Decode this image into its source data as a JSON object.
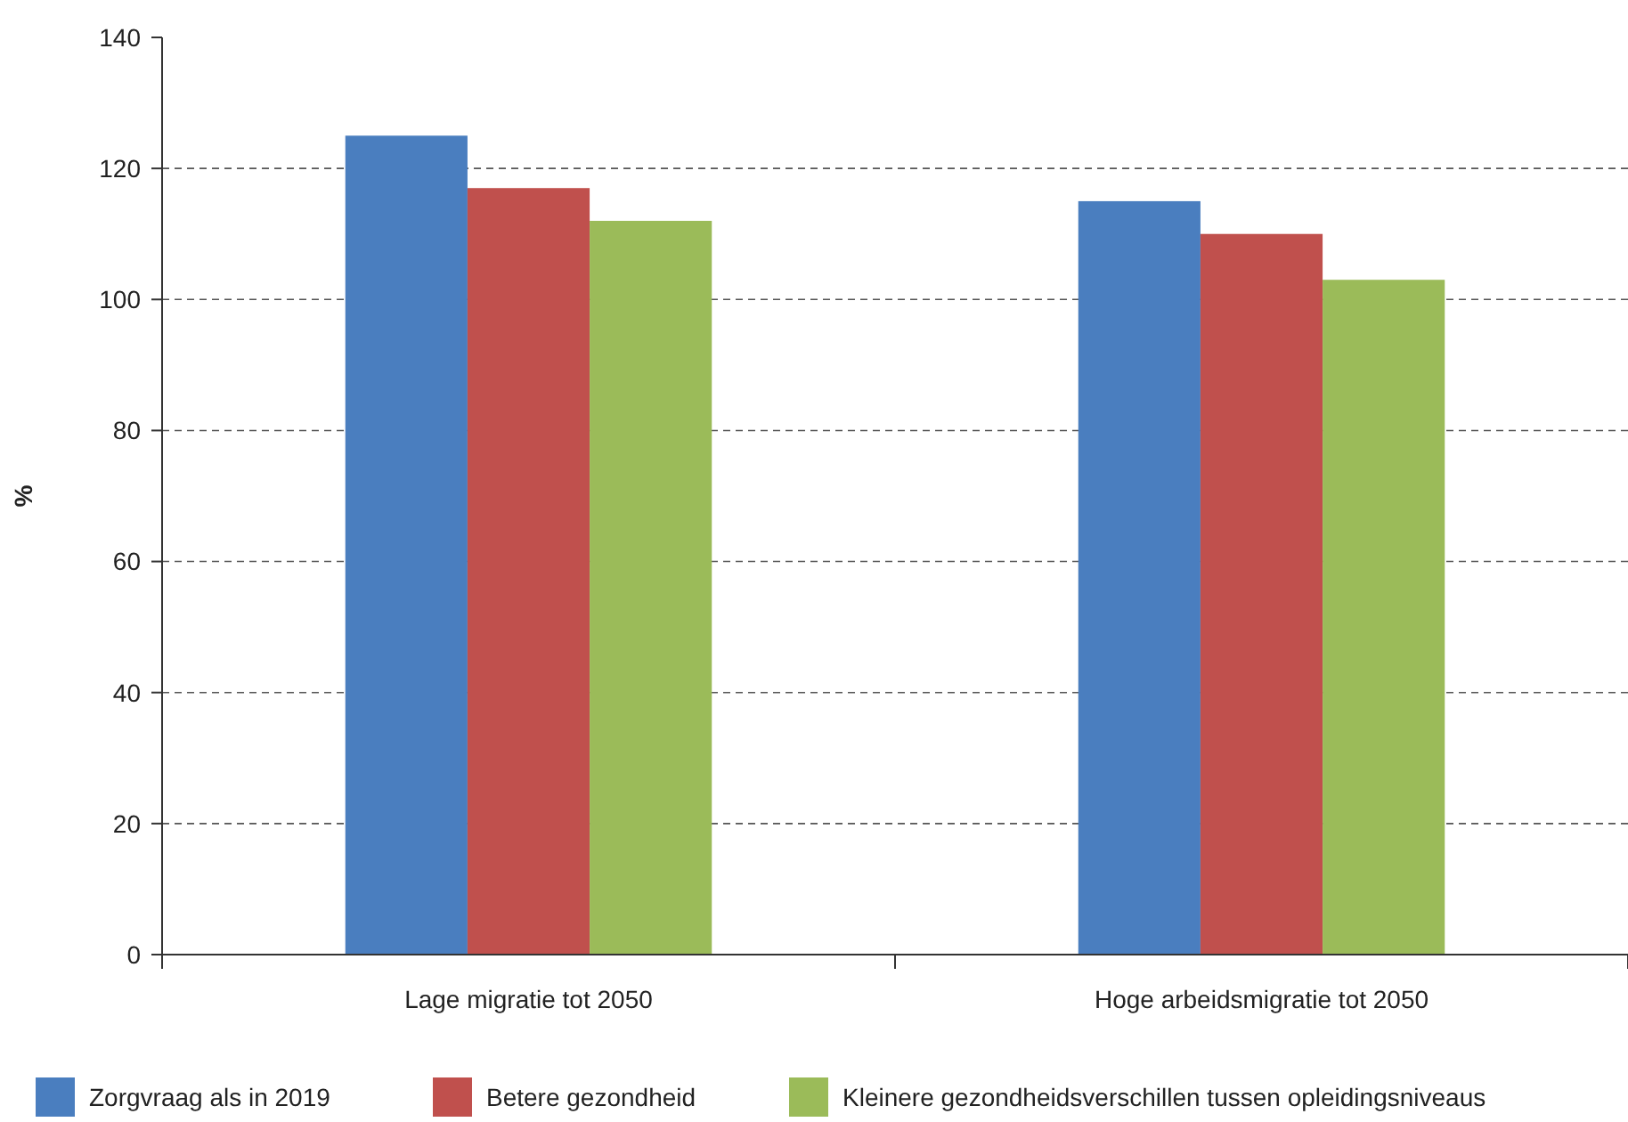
{
  "chart_data": {
    "type": "bar",
    "ylabel": "%",
    "categories": [
      "Lage migratie tot 2050",
      "Hoge arbeidsmigratie tot 2050"
    ],
    "series": [
      {
        "name": "Zorgvraag als in 2019",
        "color": "#4a7ebf",
        "values": [
          125,
          115
        ]
      },
      {
        "name": "Betere gezondheid",
        "color": "#c0504d",
        "values": [
          117,
          110
        ]
      },
      {
        "name": "Kleinere gezondheidsverschillen tussen opleidingsniveaus",
        "color": "#9bbb59",
        "values": [
          112,
          103
        ]
      }
    ],
    "ylim": [
      0,
      140
    ],
    "yticks": [
      0,
      20,
      40,
      60,
      80,
      100,
      120,
      140
    ],
    "grid": "y",
    "legend": "bottom"
  }
}
